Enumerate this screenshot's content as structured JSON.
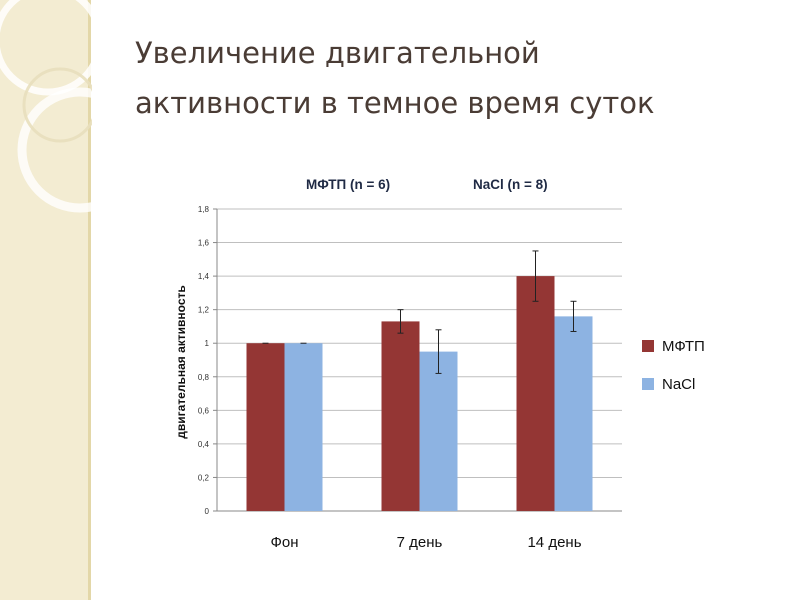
{
  "slide": {
    "title_line1": "Увеличение двигательной",
    "title_line2": "активности в темное время суток"
  },
  "colors": {
    "strip": "#f3ecd2",
    "title_text": "#4a3c35",
    "series_mftp": "#943634",
    "series_nacl": "#8db3e2"
  },
  "chart_data": {
    "type": "bar",
    "group_labels": [
      "МФТП (n = 6)",
      "NaCl (n = 8)"
    ],
    "ylabel": "двигательная активность",
    "categories": [
      "Фон",
      "7 день",
      "14 день"
    ],
    "ylim": [
      0,
      1.8
    ],
    "yticks": [
      0,
      0.2,
      0.4,
      0.6,
      0.8,
      1,
      1.2,
      1.4,
      1.6,
      1.8
    ],
    "ytick_labels": [
      "0",
      "0,2",
      "0,4",
      "0,6",
      "0,8",
      "1",
      "1,2",
      "1,4",
      "1,6",
      "1,8"
    ],
    "grid": true,
    "legend_position": "right",
    "series": [
      {
        "name": "МФТП",
        "values": [
          1.0,
          1.13,
          1.4
        ],
        "errors": [
          0,
          0.07,
          0.15
        ],
        "color": "#943634"
      },
      {
        "name": "NaCl",
        "values": [
          1.0,
          0.95,
          1.16
        ],
        "errors": [
          0,
          0.13,
          0.09
        ],
        "color": "#8db3e2"
      }
    ]
  }
}
